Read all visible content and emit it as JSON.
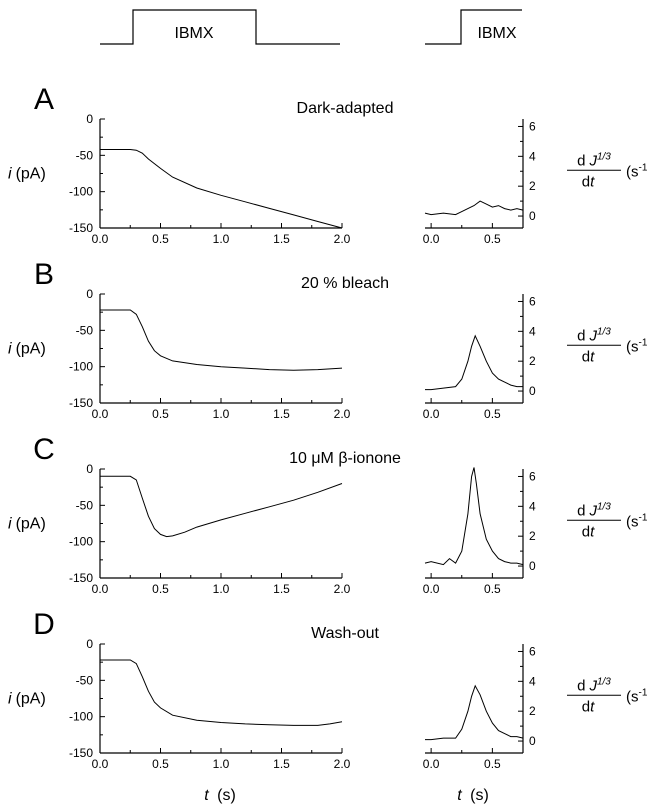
{
  "stimulus": {
    "label_left": "IBMX",
    "label_right": "IBMX"
  },
  "axis_text": {
    "current_ylabel_var": "i",
    "current_ylabel_unit": "(pA)",
    "rate_label_num_prefix": "d",
    "rate_label_num_var": "J",
    "rate_label_num_exp": "1/3",
    "rate_label_den_prefix": "d",
    "rate_label_den_var": "t",
    "rate_label_unit": "(s",
    "rate_label_unit_exp": "-1",
    "rate_label_unit_close": ")",
    "time_xlabel_var": "t",
    "time_xlabel_unit": "(s)"
  },
  "chart_data": [
    {
      "panel": "A",
      "title": "Dark-adapted",
      "type": "line",
      "current": {
        "xlim": [
          0,
          2.0
        ],
        "ylim": [
          -150,
          0
        ],
        "xticks": [
          "0.0",
          "0.5",
          "1.0",
          "1.5",
          "2.0"
        ],
        "yticks": [
          "0",
          "-50",
          "-100",
          "-150"
        ],
        "x": [
          0,
          0.25,
          0.3,
          0.35,
          0.4,
          0.5,
          0.6,
          0.8,
          1.0,
          1.2,
          1.4,
          1.6,
          1.8,
          2.0
        ],
        "y": [
          -42,
          -42,
          -43,
          -47,
          -55,
          -68,
          -80,
          -95,
          -105,
          -114,
          -123,
          -132,
          -141,
          -150
        ]
      },
      "rate": {
        "xlim": [
          -0.05,
          0.75
        ],
        "ylim": [
          -0.8,
          6.5
        ],
        "xticks": [
          "0.0",
          "0.5"
        ],
        "yticks": [
          "0",
          "2",
          "4",
          "6"
        ],
        "x": [
          -0.05,
          0,
          0.1,
          0.2,
          0.25,
          0.3,
          0.35,
          0.4,
          0.45,
          0.5,
          0.55,
          0.6,
          0.65,
          0.7,
          0.75
        ],
        "y": [
          0.2,
          0.1,
          0.2,
          0.1,
          0.3,
          0.5,
          0.7,
          1.0,
          0.8,
          0.6,
          0.7,
          0.5,
          0.4,
          0.5,
          0.4
        ]
      }
    },
    {
      "panel": "B",
      "title": "20 % bleach",
      "type": "line",
      "current": {
        "xlim": [
          0,
          2.0
        ],
        "ylim": [
          -150,
          0
        ],
        "xticks": [
          "0.0",
          "0.5",
          "1.0",
          "1.5",
          "2.0"
        ],
        "yticks": [
          "0",
          "-50",
          "-100",
          "-150"
        ],
        "x": [
          0,
          0.25,
          0.3,
          0.35,
          0.4,
          0.45,
          0.5,
          0.6,
          0.8,
          1.0,
          1.2,
          1.4,
          1.6,
          1.8,
          2.0
        ],
        "y": [
          -22,
          -22,
          -28,
          -45,
          -65,
          -78,
          -85,
          -92,
          -97,
          -100,
          -102,
          -104,
          -105,
          -104,
          -102
        ]
      },
      "rate": {
        "xlim": [
          -0.05,
          0.75
        ],
        "ylim": [
          -0.8,
          6.5
        ],
        "xticks": [
          "0.0",
          "0.5"
        ],
        "yticks": [
          "0",
          "2",
          "4",
          "6"
        ],
        "x": [
          -0.05,
          0,
          0.1,
          0.2,
          0.25,
          0.3,
          0.33,
          0.36,
          0.4,
          0.45,
          0.5,
          0.55,
          0.6,
          0.65,
          0.7,
          0.75
        ],
        "y": [
          0.1,
          0.1,
          0.2,
          0.3,
          0.8,
          2.0,
          3.0,
          3.7,
          3.0,
          2.0,
          1.2,
          0.8,
          0.6,
          0.4,
          0.3,
          0.3
        ]
      }
    },
    {
      "panel": "C",
      "title": "10 μM β-ionone",
      "type": "line",
      "current": {
        "xlim": [
          0,
          2.0
        ],
        "ylim": [
          -150,
          0
        ],
        "xticks": [
          "0.0",
          "0.5",
          "1.0",
          "1.5",
          "2.0"
        ],
        "yticks": [
          "0",
          "-50",
          "-100",
          "-150"
        ],
        "x": [
          0,
          0.25,
          0.3,
          0.35,
          0.4,
          0.45,
          0.5,
          0.55,
          0.6,
          0.7,
          0.8,
          1.0,
          1.2,
          1.4,
          1.6,
          1.8,
          2.0
        ],
        "y": [
          -10,
          -10,
          -15,
          -40,
          -65,
          -82,
          -90,
          -93,
          -92,
          -87,
          -80,
          -70,
          -61,
          -52,
          -43,
          -32,
          -20
        ]
      },
      "rate": {
        "xlim": [
          -0.05,
          0.75
        ],
        "ylim": [
          -0.8,
          6.5
        ],
        "xticks": [
          "0.0",
          "0.5"
        ],
        "yticks": [
          "0",
          "2",
          "4",
          "6"
        ],
        "x": [
          -0.05,
          0,
          0.1,
          0.15,
          0.2,
          0.25,
          0.3,
          0.33,
          0.35,
          0.37,
          0.4,
          0.45,
          0.5,
          0.55,
          0.6,
          0.65,
          0.7,
          0.75
        ],
        "y": [
          0.2,
          0.3,
          0.1,
          0.5,
          0.2,
          1.0,
          3.5,
          6.0,
          6.6,
          5.5,
          3.5,
          1.8,
          1.0,
          0.5,
          0.3,
          0.2,
          0.2,
          0.1
        ]
      }
    },
    {
      "panel": "D",
      "title": "Wash-out",
      "type": "line",
      "current": {
        "xlim": [
          0,
          2.0
        ],
        "ylim": [
          -150,
          0
        ],
        "xticks": [
          "0.0",
          "0.5",
          "1.0",
          "1.5",
          "2.0"
        ],
        "yticks": [
          "0",
          "-50",
          "-100",
          "-150"
        ],
        "x": [
          0,
          0.25,
          0.3,
          0.35,
          0.4,
          0.45,
          0.5,
          0.6,
          0.8,
          1.0,
          1.2,
          1.4,
          1.6,
          1.8,
          1.9,
          2.0
        ],
        "y": [
          -22,
          -22,
          -27,
          -45,
          -65,
          -80,
          -88,
          -98,
          -105,
          -108,
          -110,
          -111,
          -112,
          -112,
          -110,
          -107
        ]
      },
      "rate": {
        "xlim": [
          -0.05,
          0.75
        ],
        "ylim": [
          -0.8,
          6.5
        ],
        "xticks": [
          "0.0",
          "0.5"
        ],
        "yticks": [
          "0",
          "2",
          "4",
          "6"
        ],
        "x": [
          -0.05,
          0,
          0.1,
          0.2,
          0.25,
          0.3,
          0.33,
          0.36,
          0.4,
          0.45,
          0.5,
          0.55,
          0.6,
          0.65,
          0.7,
          0.75
        ],
        "y": [
          0.1,
          0.1,
          0.2,
          0.2,
          0.8,
          2.0,
          3.0,
          3.7,
          3.1,
          2.0,
          1.2,
          0.7,
          0.5,
          0.3,
          0.3,
          0.2
        ]
      }
    }
  ]
}
